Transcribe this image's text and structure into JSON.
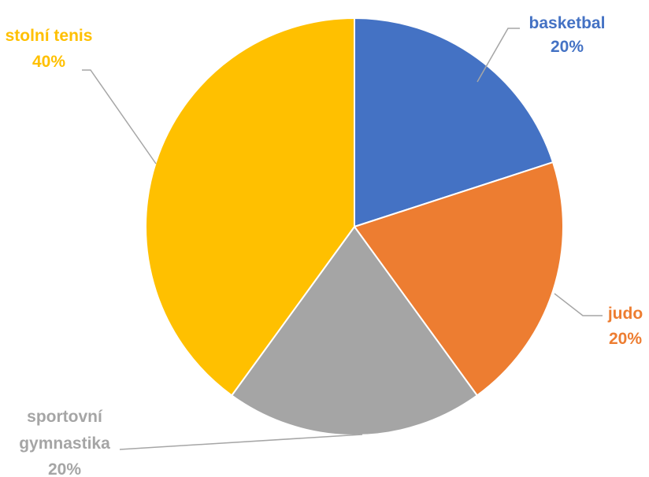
{
  "chart_data": {
    "type": "pie",
    "title": "",
    "slices": [
      {
        "label": "basketbal",
        "value": 20,
        "display": "20%",
        "color": "#4472C4"
      },
      {
        "label": "judo",
        "value": 20,
        "display": "20%",
        "color": "#ED7D31"
      },
      {
        "label": "sportovní gymnastika",
        "label_lines": [
          "sportovní",
          "gymnastika"
        ],
        "value": 20,
        "display": "20%",
        "color": "#A5A5A5"
      },
      {
        "label": "stolní tenis",
        "value": 40,
        "display": "40%",
        "color": "#FFC000"
      }
    ],
    "start_angle_deg": 0,
    "direction": "clockwise",
    "legend": "none",
    "data_labels": "outside with leader lines"
  }
}
